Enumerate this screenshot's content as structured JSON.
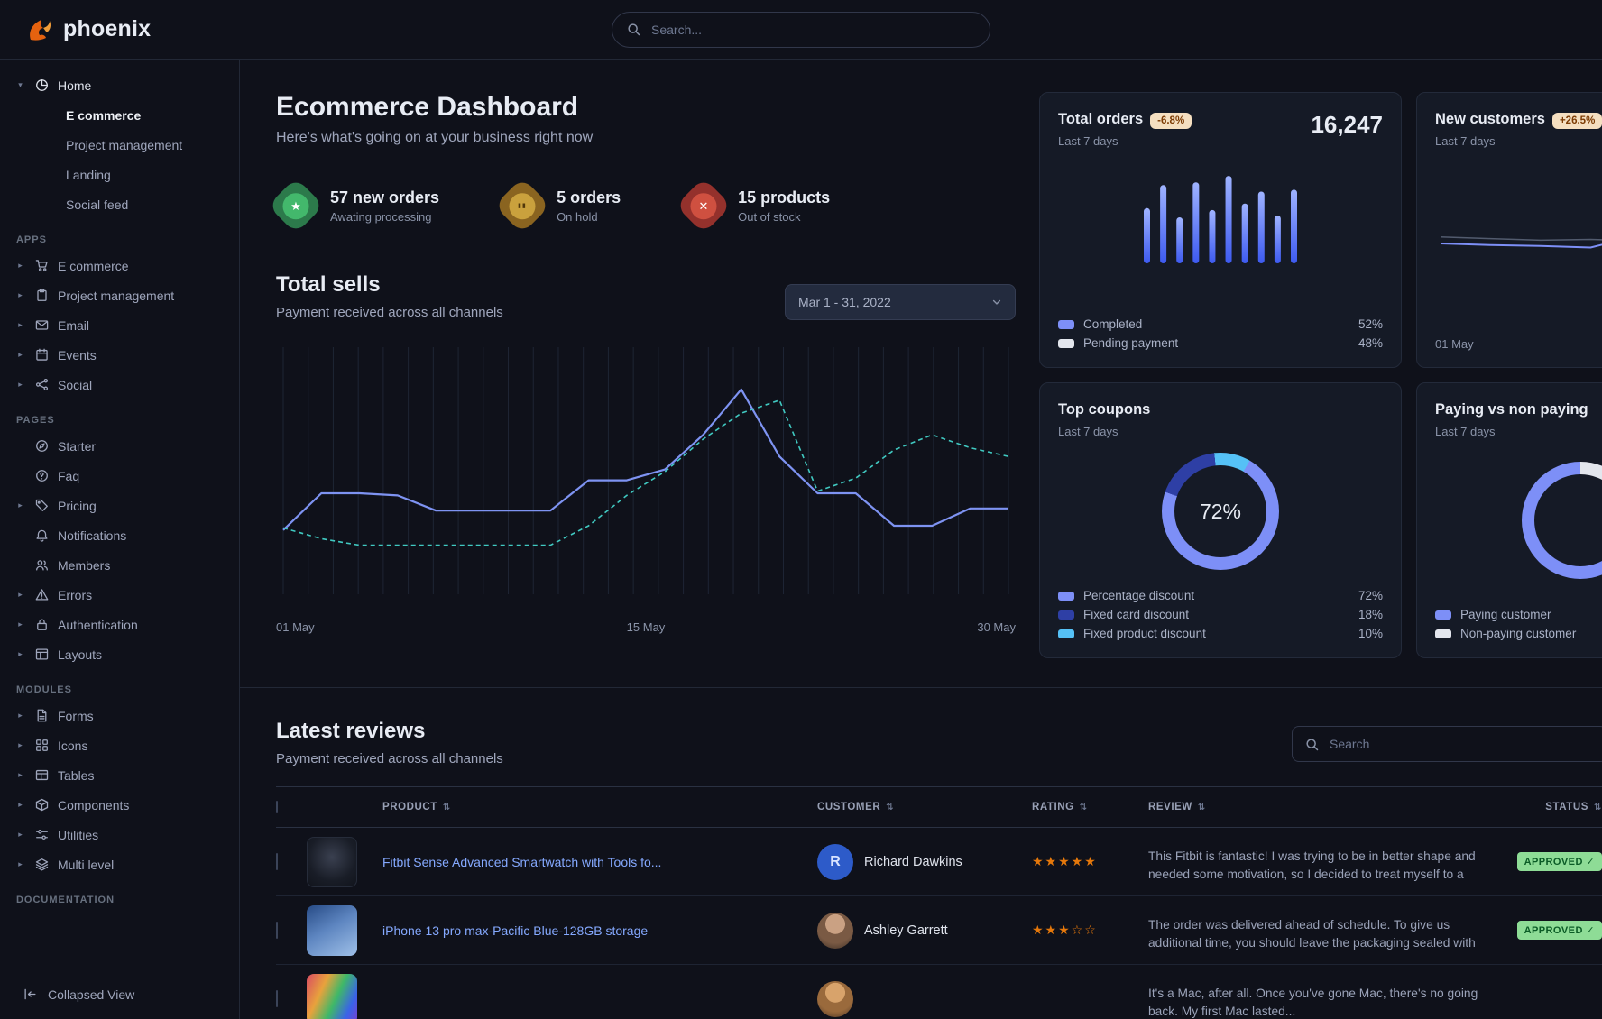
{
  "brand": {
    "name": "phoenix"
  },
  "navbar": {
    "search_placeholder": "Search..."
  },
  "sidebar": {
    "home": {
      "label": "Home",
      "icon": "pie-chart",
      "expanded": true,
      "children": [
        {
          "label": "E commerce",
          "active": true
        },
        {
          "label": "Project management",
          "active": false
        },
        {
          "label": "Landing",
          "active": false
        },
        {
          "label": "Social feed",
          "active": false
        }
      ]
    },
    "sections": [
      {
        "label": "APPS",
        "items": [
          {
            "label": "E commerce",
            "icon": "cart",
            "caret": true
          },
          {
            "label": "Project management",
            "icon": "clipboard",
            "caret": true
          },
          {
            "label": "Email",
            "icon": "mail",
            "caret": true
          },
          {
            "label": "Events",
            "icon": "calendar",
            "caret": true
          },
          {
            "label": "Social",
            "icon": "share",
            "caret": true
          }
        ]
      },
      {
        "label": "PAGES",
        "items": [
          {
            "label": "Starter",
            "icon": "compass",
            "caret": false
          },
          {
            "label": "Faq",
            "icon": "question",
            "caret": false
          },
          {
            "label": "Pricing",
            "icon": "tag",
            "caret": true
          },
          {
            "label": "Notifications",
            "icon": "bell",
            "caret": false
          },
          {
            "label": "Members",
            "icon": "users",
            "caret": false
          },
          {
            "label": "Errors",
            "icon": "warning",
            "caret": true
          },
          {
            "label": "Authentication",
            "icon": "lock",
            "caret": true
          },
          {
            "label": "Layouts",
            "icon": "layout",
            "caret": true
          }
        ]
      },
      {
        "label": "MODULES",
        "items": [
          {
            "label": "Forms",
            "icon": "file",
            "caret": true
          },
          {
            "label": "Icons",
            "icon": "grid",
            "caret": true
          },
          {
            "label": "Tables",
            "icon": "table",
            "caret": true
          },
          {
            "label": "Components",
            "icon": "box",
            "caret": true
          },
          {
            "label": "Utilities",
            "icon": "sliders",
            "caret": true
          },
          {
            "label": "Multi level",
            "icon": "layers",
            "caret": true
          }
        ]
      },
      {
        "label": "DOCUMENTATION",
        "items": []
      }
    ],
    "footer": {
      "label": "Collapsed View",
      "icon": "collapse"
    }
  },
  "page": {
    "title": "Ecommerce Dashboard",
    "subtitle": "Here's what's going on at your business right now"
  },
  "stats": [
    {
      "value": "57 new orders",
      "caption": "Awating processing",
      "color": "green",
      "glyph": "star"
    },
    {
      "value": "5 orders",
      "caption": "On hold",
      "color": "gold",
      "glyph": "pause"
    },
    {
      "value": "15 products",
      "caption": "Out of stock",
      "color": "red",
      "glyph": "x"
    }
  ],
  "total_sells": {
    "title": "Total sells",
    "subtitle": "Payment received across all channels",
    "date_range": "Mar 1 - 31, 2022",
    "chart_data": {
      "type": "line",
      "xticks": [
        "01 May",
        "15 May",
        "30 May"
      ],
      "series": [
        {
          "name": "current",
          "style": "solid",
          "color": "#7e93f2",
          "values": [
            28,
            45,
            45,
            44,
            37,
            37,
            37,
            37,
            51,
            51,
            56,
            72,
            93,
            62,
            45,
            45,
            30,
            30,
            38,
            38
          ]
        },
        {
          "name": "previous",
          "style": "dashed",
          "color": "#40c9c1",
          "values": [
            29,
            24,
            21,
            21,
            21,
            21,
            21,
            21,
            30,
            44,
            55,
            70,
            82,
            88,
            46,
            52,
            65,
            72,
            66,
            62
          ]
        }
      ]
    }
  },
  "cards": {
    "total_orders": {
      "title": "Total orders",
      "badge": "-6.8%",
      "period": "Last 7 days",
      "value": "16,247",
      "chart_data": {
        "type": "bar",
        "values": [
          60,
          85,
          50,
          88,
          58,
          95,
          65,
          78,
          52,
          80
        ],
        "color": "#7d8ff7"
      },
      "legend": [
        {
          "label": "Completed",
          "value": "52%",
          "color": "#7d8ff7"
        },
        {
          "label": "Pending payment",
          "value": "48%",
          "color": "#e3e6ed"
        }
      ]
    },
    "new_customers": {
      "title": "New customers",
      "badge": "+26.5%",
      "period": "Last 7 days",
      "xlabel": "01 May",
      "chart_data": {
        "type": "line",
        "series": [
          {
            "name": "previous",
            "color": "#525b6e",
            "values": [
              48,
              46,
              44,
              45,
              43,
              46,
              44,
              42
            ]
          },
          {
            "name": "current",
            "color": "#7d8ff7",
            "values": [
              40,
              38,
              37,
              35,
              50,
              58,
              44,
              48
            ]
          }
        ]
      }
    },
    "top_coupons": {
      "title": "Top coupons",
      "period": "Last 7 days",
      "center_value": "72%",
      "chart_data": {
        "type": "donut",
        "values": [
          72,
          18,
          10
        ],
        "colors": [
          "#7d8ff7",
          "#2e3fa5",
          "#55c1f6"
        ],
        "from_deg": 30
      },
      "legend": [
        {
          "label": "Percentage discount",
          "value": "72%",
          "color": "#7d8ff7"
        },
        {
          "label": "Fixed card discount",
          "value": "18%",
          "color": "#2e3fa5"
        },
        {
          "label": "Fixed product discount",
          "value": "10%",
          "color": "#55c1f6"
        }
      ]
    },
    "paying": {
      "title": "Paying vs non paying",
      "period": "Last 7 days",
      "chart_data": {
        "type": "donut",
        "values": [
          35,
          65
        ],
        "colors": [
          "#e3e6ed",
          "#7d8ff7"
        ],
        "from_deg": 0
      },
      "legend": [
        {
          "label": "Paying customer",
          "color": "#7d8ff7"
        },
        {
          "label": "Non-paying customer",
          "color": "#e3e6ed"
        }
      ]
    }
  },
  "reviews": {
    "title": "Latest reviews",
    "subtitle": "Payment received across all channels",
    "search_placeholder": "Search",
    "columns": [
      "PRODUCT",
      "CUSTOMER",
      "RATING",
      "REVIEW",
      "STATUS"
    ],
    "rows": [
      {
        "product": "Fitbit Sense Advanced Smartwatch with Tools fo...",
        "thumb": "watch",
        "customer": "Richard Dawkins",
        "avatar": "initial",
        "avatar_text": "R",
        "rating": 5,
        "review": "This Fitbit is fantastic! I was trying to be in better shape and needed some motivation, so I decided to treat myself to a new Fitbit.",
        "status": "APPROVED"
      },
      {
        "product": "iPhone 13 pro max-Pacific Blue-128GB storage",
        "thumb": "iphone",
        "customer": "Ashley Garrett",
        "avatar": "photo-female",
        "avatar_text": "",
        "rating": 3,
        "review": "The order was delivered ahead of schedule. To give us additional time, you should leave the packaging sealed with plastic.",
        "status": "APPROVED"
      },
      {
        "product": "",
        "thumb": "macbook",
        "customer": "",
        "avatar": "photo-male",
        "avatar_text": "",
        "rating": 0,
        "review": "It's a Mac, after all. Once you've gone Mac, there's no going back. My first Mac lasted...",
        "status": ""
      }
    ]
  }
}
